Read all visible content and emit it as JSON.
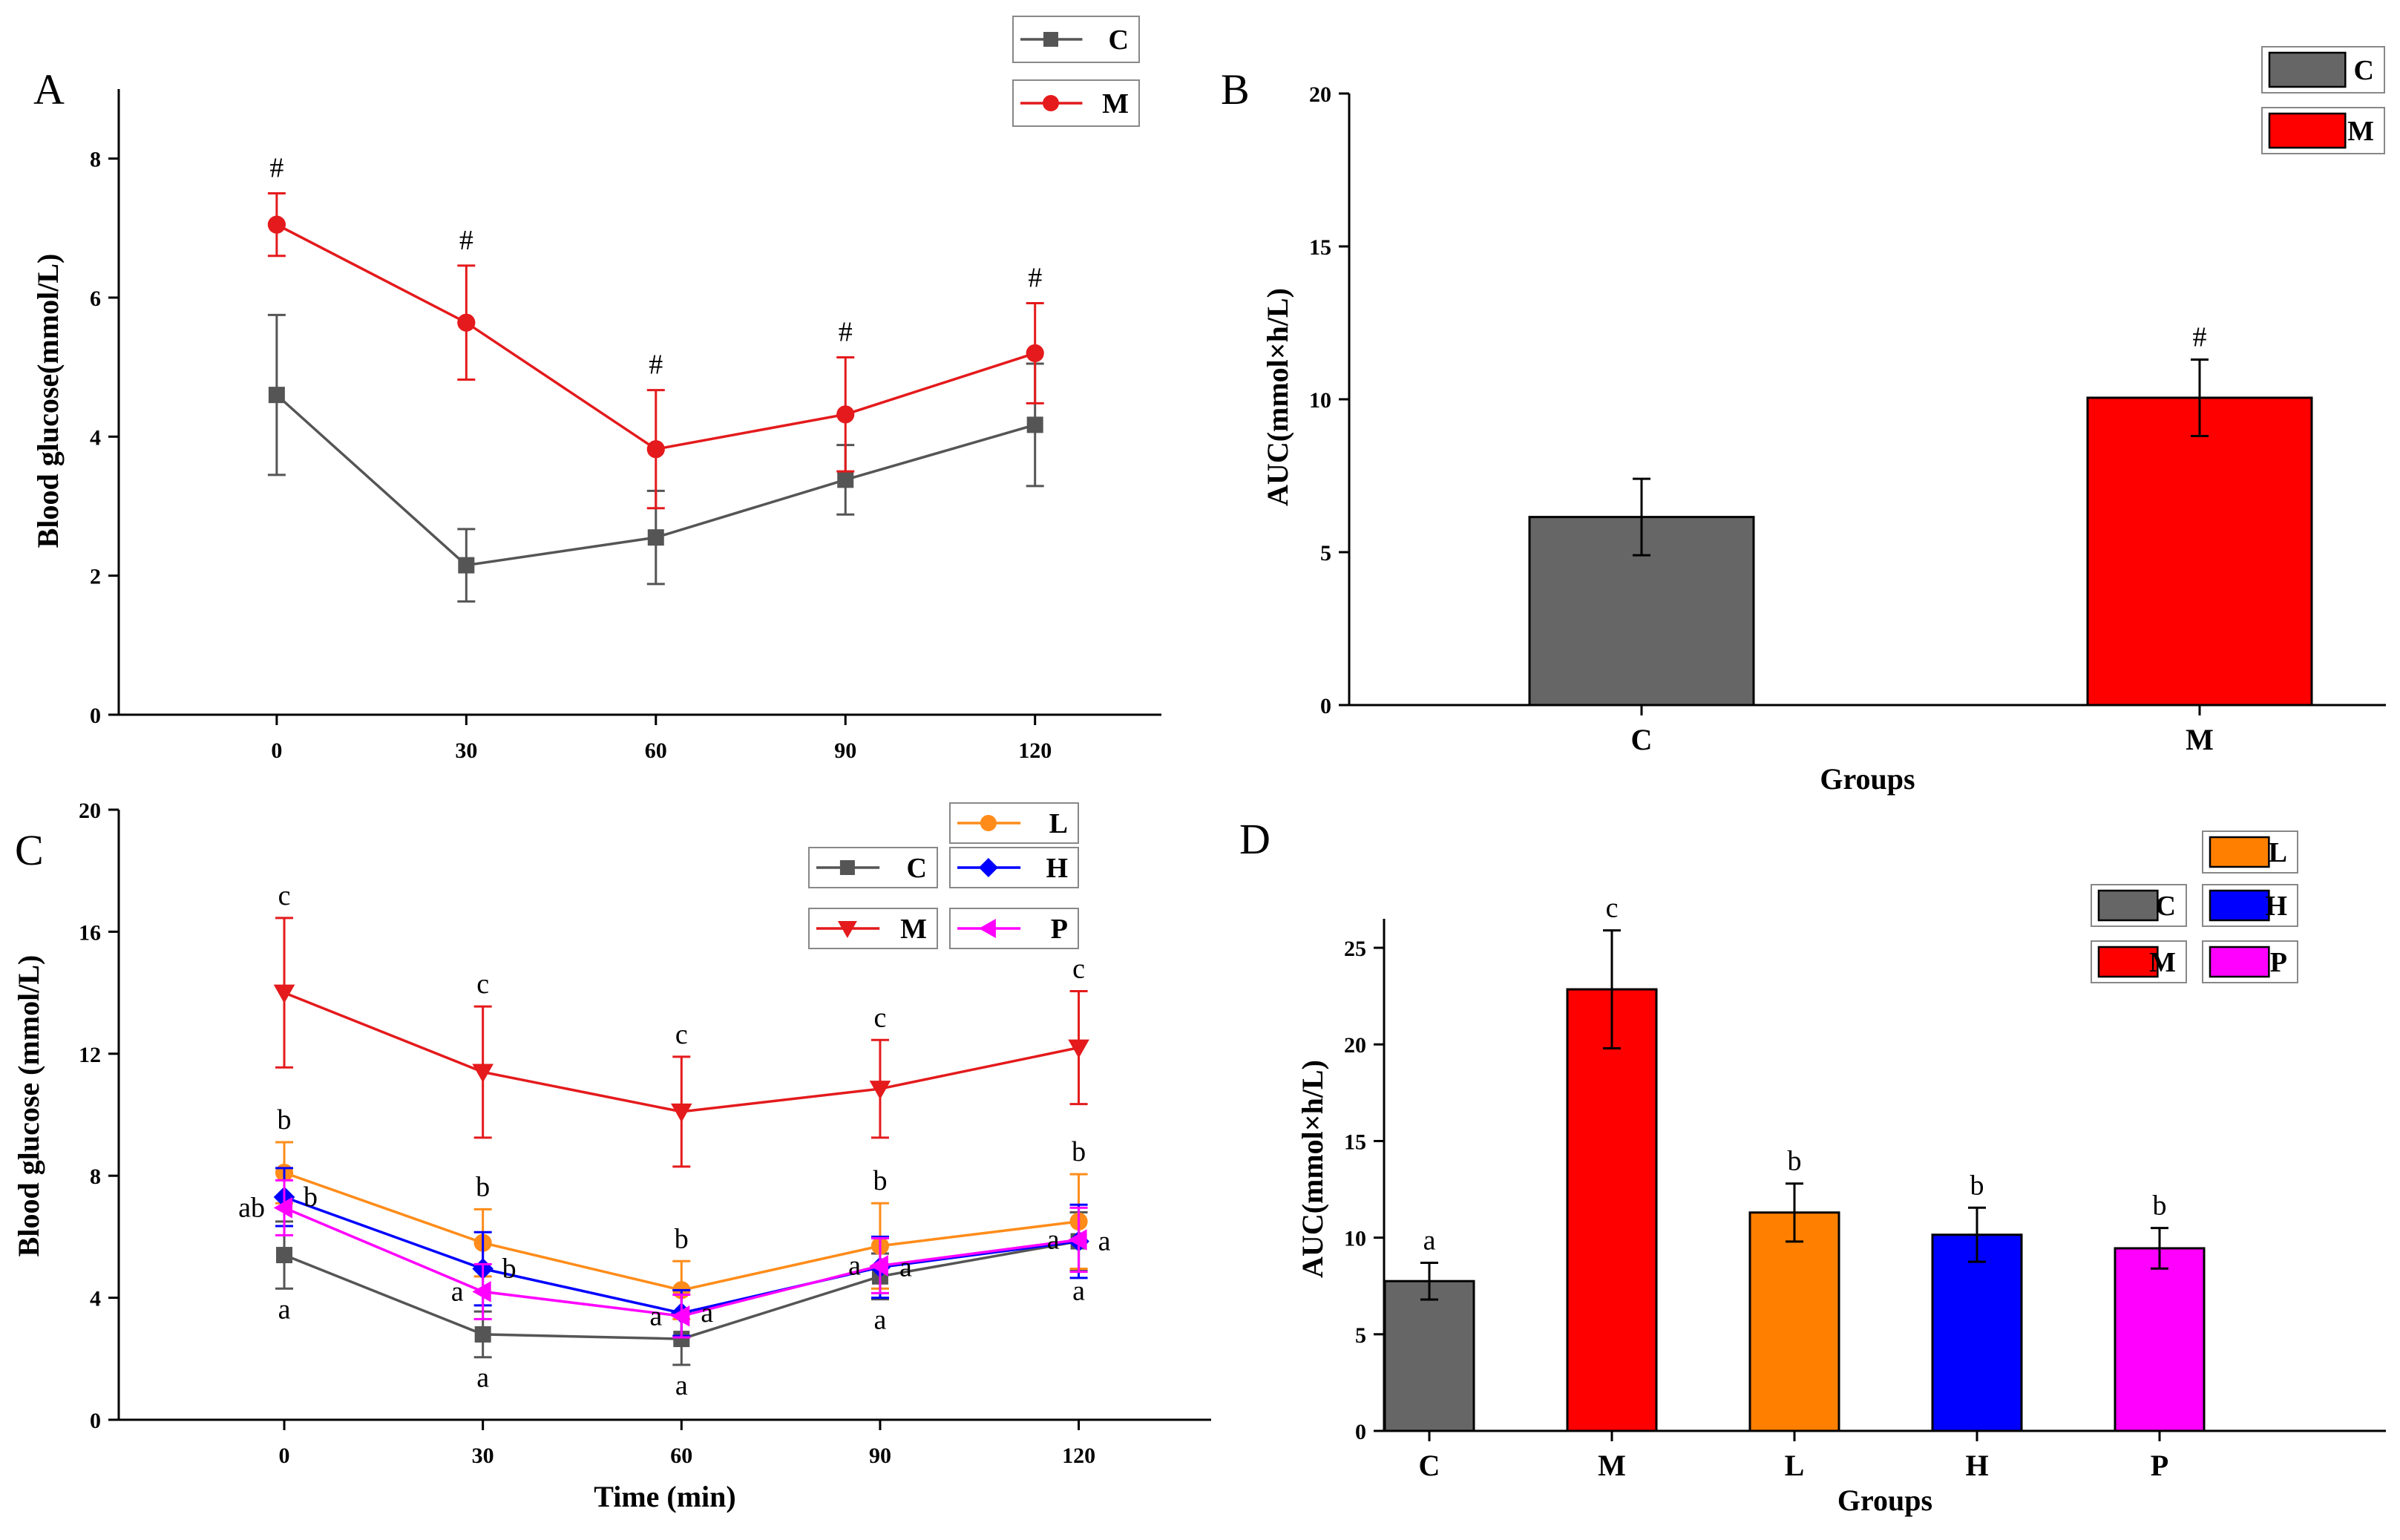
{
  "chart_data": [
    {
      "panel": "A",
      "type": "line",
      "x": [
        0,
        30,
        60,
        90,
        120
      ],
      "xlim": [
        -25,
        140
      ],
      "ylim": [
        0,
        9
      ],
      "yticks": [
        0,
        2,
        4,
        6,
        8
      ],
      "xlabel": "",
      "ylabel": "Blood glucose(mmol/L)",
      "legend_position": "top-right",
      "series": [
        {
          "name": "C",
          "color": "#555555",
          "marker": "square",
          "values": [
            4.6,
            2.15,
            2.55,
            3.38,
            4.17
          ],
          "errors": [
            1.15,
            0.52,
            0.67,
            0.5,
            0.88
          ],
          "labels": [
            "",
            "",
            "",
            "",
            ""
          ]
        },
        {
          "name": "M",
          "color": "#e41a1c",
          "marker": "circle",
          "values": [
            7.05,
            5.64,
            3.82,
            4.32,
            5.2
          ],
          "errors": [
            0.45,
            0.82,
            0.85,
            0.82,
            0.72
          ],
          "labels": [
            "#",
            "#",
            "#",
            "#",
            "#"
          ]
        }
      ]
    },
    {
      "panel": "B",
      "type": "bar",
      "categories": [
        "C",
        "M"
      ],
      "ylim": [
        0,
        20
      ],
      "yticks": [
        0,
        5,
        10,
        15,
        20
      ],
      "xlabel": "Groups",
      "ylabel": "AUC(mmol×h/L)",
      "legend_position": "top-right",
      "series": [
        {
          "name": "C",
          "color": "#666666",
          "value": 6.15,
          "error": 1.25,
          "label": ""
        },
        {
          "name": "M",
          "color": "#ff0000",
          "value": 10.05,
          "error": 1.25,
          "label": "#"
        }
      ]
    },
    {
      "panel": "C",
      "type": "line",
      "x": [
        0,
        30,
        60,
        90,
        120
      ],
      "xlim": [
        -25,
        140
      ],
      "ylim": [
        0,
        20
      ],
      "yticks": [
        0,
        4,
        8,
        12,
        16,
        20
      ],
      "xlabel": "Time (min)",
      "ylabel": "Blood glucose (mmol/L)",
      "legend_position": "top-right",
      "series": [
        {
          "name": "C",
          "color": "#555555",
          "marker": "square",
          "values": [
            5.4,
            2.8,
            2.65,
            4.7,
            5.85
          ],
          "errors": [
            1.1,
            0.75,
            0.85,
            0.75,
            0.95
          ],
          "labels": [
            "a",
            "a",
            "a",
            "a",
            "a"
          ]
        },
        {
          "name": "M",
          "color": "#e41a1c",
          "marker": "triangle-down",
          "values": [
            14.0,
            11.4,
            10.1,
            10.85,
            12.2
          ],
          "errors": [
            2.45,
            2.15,
            1.8,
            1.6,
            1.85
          ],
          "labels": [
            "c",
            "c",
            "c",
            "c",
            "c"
          ]
        },
        {
          "name": "L",
          "color": "#ff8c1a",
          "marker": "circle",
          "values": [
            8.1,
            5.8,
            4.25,
            5.7,
            6.5
          ],
          "errors": [
            1.0,
            1.1,
            0.95,
            1.4,
            1.55
          ],
          "labels": [
            "b",
            "b",
            "b",
            "b",
            "b"
          ]
        },
        {
          "name": "H",
          "color": "#0000ff",
          "marker": "diamond",
          "values": [
            7.3,
            4.95,
            3.5,
            5.0,
            5.85
          ],
          "errors": [
            0.95,
            1.2,
            0.75,
            1.0,
            1.2
          ],
          "labels": [
            "b",
            "b",
            "a",
            "a",
            "a"
          ]
        },
        {
          "name": "P",
          "color": "#ff00ff",
          "marker": "triangle-left",
          "values": [
            6.95,
            4.2,
            3.4,
            5.05,
            5.9
          ],
          "errors": [
            0.9,
            0.9,
            0.7,
            0.9,
            1.05
          ],
          "labels": [
            "ab",
            "a",
            "a",
            "a",
            "a"
          ]
        }
      ]
    },
    {
      "panel": "D",
      "type": "bar",
      "categories": [
        "C",
        "M",
        "L",
        "H",
        "P"
      ],
      "ylim": [
        0,
        26.5
      ],
      "yticks": [
        0,
        5,
        10,
        15,
        20,
        25
      ],
      "xlabel": "Groups",
      "ylabel": "AUC(mmol×h/L)",
      "legend_position": "top-right",
      "series": [
        {
          "name": "C",
          "color": "#666666",
          "value": 7.75,
          "error": 0.95,
          "label": "a"
        },
        {
          "name": "M",
          "color": "#ff0000",
          "value": 22.85,
          "error": 3.05,
          "label": "c"
        },
        {
          "name": "L",
          "color": "#ff8000",
          "value": 11.3,
          "error": 1.5,
          "label": "b"
        },
        {
          "name": "H",
          "color": "#0000ff",
          "value": 10.15,
          "error": 1.4,
          "label": "b"
        },
        {
          "name": "P",
          "color": "#ff00ff",
          "value": 9.45,
          "error": 1.05,
          "label": "b"
        }
      ]
    }
  ]
}
